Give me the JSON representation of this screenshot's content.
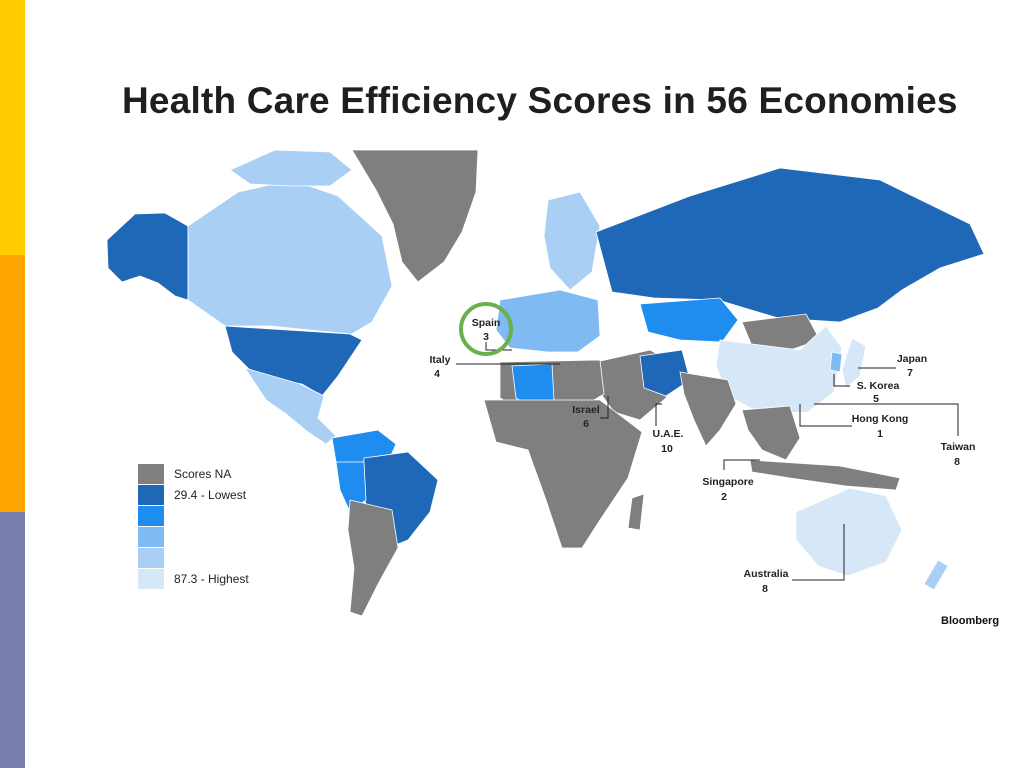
{
  "slide": {
    "accent_colors": [
      "#ffcc00",
      "#ffa500",
      "#7a7fb0"
    ]
  },
  "title": "Health Care Efficiency Scores in 56 Economies",
  "legend": {
    "items": [
      {
        "label": "Scores NA",
        "color": "#7f7f7f"
      },
      {
        "label": "29.4 - Lowest",
        "color": "#1f68b8"
      },
      {
        "label": "",
        "color": "#1f8cf0"
      },
      {
        "label": "",
        "color": "#7fbaf2"
      },
      {
        "label": "",
        "color": "#a9cff4"
      },
      {
        "label": "87.3 - Highest",
        "color": "#d6e8f8"
      }
    ]
  },
  "callouts": [
    {
      "name": "Spain",
      "rank": "3",
      "highlighted": true
    },
    {
      "name": "Italy",
      "rank": "4"
    },
    {
      "name": "Israel",
      "rank": "6"
    },
    {
      "name": "U.A.E.",
      "rank": "10"
    },
    {
      "name": "Japan",
      "rank": "7"
    },
    {
      "name": "S. Korea",
      "rank": "5"
    },
    {
      "name": "Hong Kong",
      "rank": "1"
    },
    {
      "name": "Taiwan",
      "rank": "8"
    },
    {
      "name": "Singapore",
      "rank": "2"
    },
    {
      "name": "Australia",
      "rank": "8"
    }
  ],
  "highlight_color": "#6ab04c",
  "source": "Bloomberg"
}
